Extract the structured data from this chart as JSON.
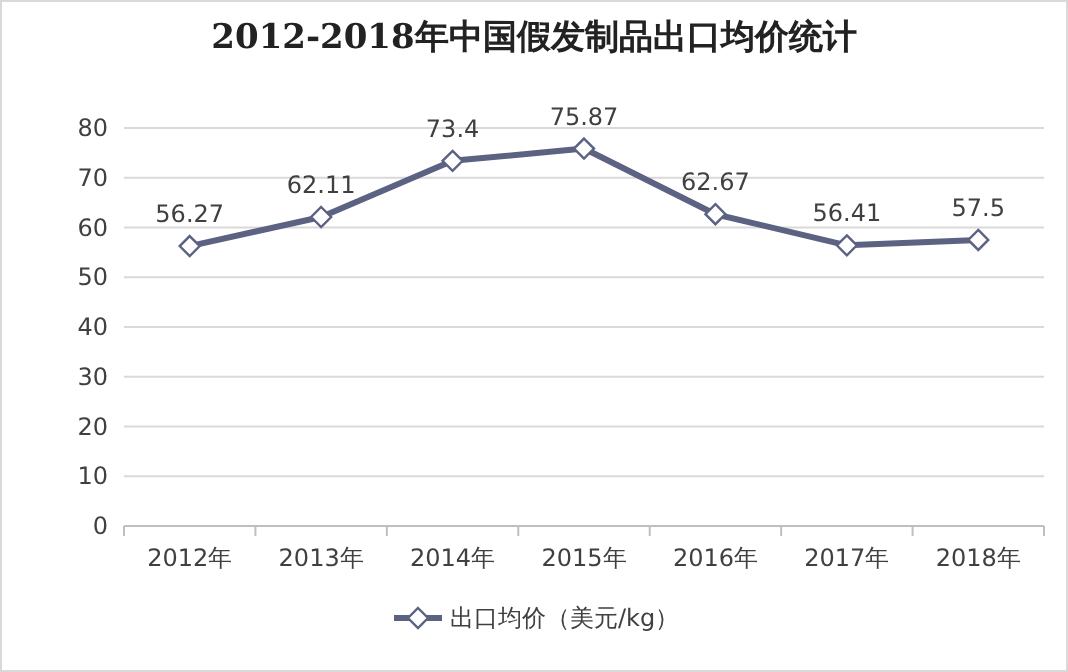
{
  "chart_data": {
    "type": "line",
    "title": "2012-2018年中国假发制品出口均价统计",
    "categories": [
      "2012年",
      "2013年",
      "2014年",
      "2015年",
      "2016年",
      "2017年",
      "2018年"
    ],
    "series": [
      {
        "name": "出口均价（美元/kg）",
        "color": "#5b6282",
        "values": [
          56.27,
          62.11,
          73.4,
          75.87,
          62.67,
          56.41,
          57.5
        ]
      }
    ],
    "ylim": [
      0,
      80
    ],
    "yticks": [
      0,
      10,
      20,
      30,
      40,
      50,
      60,
      70,
      80
    ],
    "grid": "y",
    "legend": "bottom",
    "marker": "diamond",
    "data_labels": true
  }
}
